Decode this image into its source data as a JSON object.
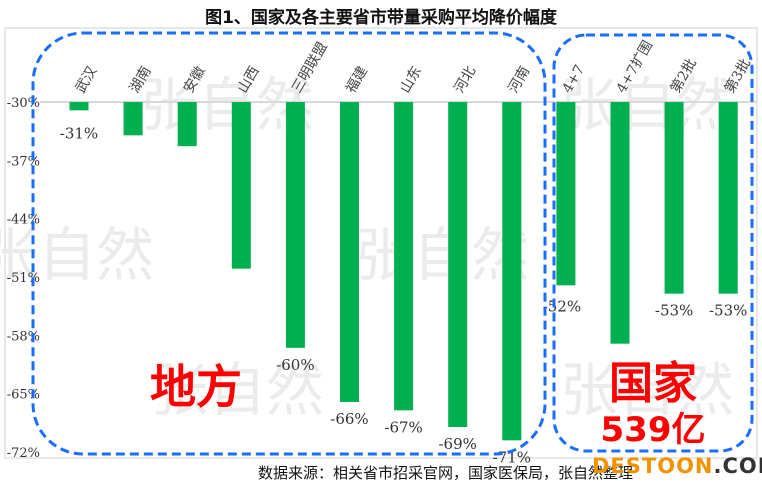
{
  "chart_data": {
    "type": "bar",
    "title": "图1、国家及各主要省市带量采购平均降价幅度",
    "categories": [
      "武汉",
      "湖南",
      "安徽",
      "山西",
      "三明联盟",
      "福建",
      "山东",
      "河北",
      "河南",
      "4+7",
      "4+7扩围",
      "第2批",
      "第3批"
    ],
    "values": [
      -31,
      -34,
      -35.3,
      -50,
      -59.5,
      -66,
      -67,
      -69,
      -70.6,
      -52,
      -59,
      -53,
      -53
    ],
    "data_labels": [
      "-31%",
      "",
      "",
      "",
      "-60%",
      "-66%",
      "-67%",
      "-69%",
      "-71%",
      "-52%",
      "",
      "-53%",
      "-53%"
    ],
    "yticks": [
      "-30%",
      "-37%",
      "-44%",
      "-51%",
      "-58%",
      "-65%",
      "-72%"
    ],
    "ylim": [
      -72,
      -30
    ],
    "grid": false,
    "bar_color": "#00b050",
    "groups": [
      {
        "label": "地方",
        "color": "#ff0000"
      },
      {
        "label": "国家",
        "sublabel": "539亿",
        "color": "#ff0000"
      }
    ],
    "group_border_color": "#1a6eff"
  },
  "source": "数据来源：相关省市招采官网，国家医保局，张自然整理",
  "watermark": "张自然",
  "logo": {
    "main": "DESTOON",
    "suffix": ".COM"
  }
}
